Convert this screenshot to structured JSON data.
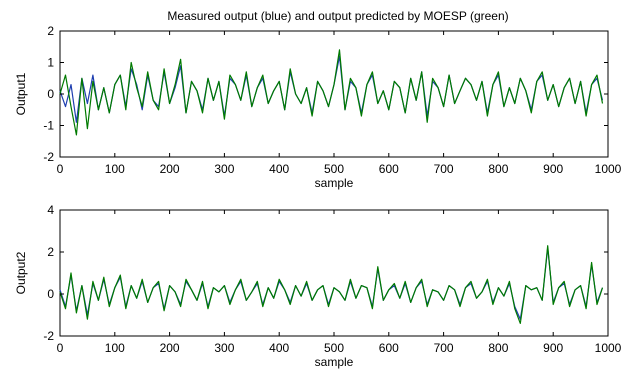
{
  "chart_data": {
    "title": "Measured output (blue) and output predicted by MOESP (green)",
    "colors": {
      "measured": "#1f3fb0",
      "predicted": "#007a00",
      "axes": "#000000"
    },
    "plots": [
      {
        "type": "line",
        "ylabel": "Output1",
        "xlabel": "sample",
        "xlim": [
          0,
          1000
        ],
        "ylim": [
          -2,
          2
        ],
        "xticks": [
          0,
          100,
          200,
          300,
          400,
          500,
          600,
          700,
          800,
          900,
          1000
        ],
        "yticks": [
          -2,
          -1,
          0,
          1,
          2
        ],
        "series": [
          {
            "key": "measured",
            "x_step": 10,
            "values": [
              0.1,
              -0.4,
              0.3,
              -0.9,
              0.5,
              -0.3,
              0.6,
              -0.5,
              0.2,
              -0.6,
              0.3,
              0.6,
              -0.4,
              0.8,
              0.3,
              -0.5,
              0.6,
              -0.2,
              -0.4,
              0.7,
              -0.3,
              0.2,
              0.9,
              -0.6,
              0.4,
              0.1,
              -0.5,
              0.5,
              -0.2,
              0.4,
              -0.7,
              0.5,
              0.3,
              -0.2,
              0.6,
              -0.4,
              0.2,
              0.5,
              -0.3,
              0.1,
              0.4,
              -0.5,
              0.7,
              0.0,
              -0.3,
              0.2,
              -0.6,
              0.4,
              0.1,
              -0.4,
              0.3,
              1.2,
              -0.5,
              0.4,
              0.2,
              -0.6,
              0.3,
              0.6,
              -0.3,
              0.1,
              -0.5,
              0.4,
              0.2,
              -0.6,
              0.5,
              -0.2,
              0.7,
              -0.7,
              0.4,
              0.2,
              -0.4,
              0.6,
              -0.3,
              0.1,
              0.5,
              0.3,
              -0.2,
              0.4,
              -0.6,
              0.3,
              0.6,
              -0.4,
              0.2,
              -0.3,
              0.5,
              0.1,
              -0.5,
              0.4,
              0.6,
              -0.2,
              0.3,
              -0.4,
              0.2,
              0.5,
              -0.3,
              0.4,
              -0.6,
              0.3,
              0.5,
              -0.2
            ]
          },
          {
            "key": "predicted",
            "x_step": 10,
            "values": [
              0.0,
              0.6,
              -0.4,
              -1.3,
              0.5,
              -1.1,
              0.4,
              -0.5,
              0.2,
              -0.6,
              0.3,
              0.6,
              -0.5,
              1.0,
              0.2,
              -0.4,
              0.7,
              -0.2,
              -0.5,
              0.8,
              -0.3,
              0.3,
              1.1,
              -0.6,
              0.4,
              0.1,
              -0.6,
              0.5,
              -0.2,
              0.4,
              -0.8,
              0.6,
              0.3,
              -0.2,
              0.7,
              -0.4,
              0.2,
              0.6,
              -0.3,
              0.1,
              0.4,
              -0.5,
              0.8,
              0.0,
              -0.3,
              0.2,
              -0.7,
              0.4,
              0.1,
              -0.4,
              0.3,
              1.4,
              -0.5,
              0.5,
              0.2,
              -0.7,
              0.3,
              0.7,
              -0.3,
              0.1,
              -0.5,
              0.4,
              0.2,
              -0.6,
              0.5,
              -0.2,
              0.7,
              -0.9,
              0.5,
              0.2,
              -0.4,
              0.6,
              -0.3,
              0.1,
              0.5,
              0.3,
              -0.2,
              0.4,
              -0.7,
              0.3,
              0.7,
              -0.4,
              0.2,
              -0.3,
              0.5,
              0.1,
              -0.6,
              0.4,
              0.7,
              -0.2,
              0.3,
              -0.4,
              0.2,
              0.5,
              -0.3,
              0.4,
              -0.7,
              0.3,
              0.6,
              -0.3
            ]
          }
        ]
      },
      {
        "type": "line",
        "ylabel": "Output2",
        "xlabel": "sample",
        "xlim": [
          0,
          1000
        ],
        "ylim": [
          -2,
          4
        ],
        "xticks": [
          0,
          100,
          200,
          300,
          400,
          500,
          600,
          700,
          800,
          900,
          1000
        ],
        "yticks": [
          -2,
          0,
          2,
          4
        ],
        "series": [
          {
            "key": "measured",
            "x_step": 10,
            "values": [
              0.2,
              -0.6,
              0.9,
              -0.8,
              0.4,
              -1.0,
              0.5,
              -0.3,
              0.7,
              -0.5,
              0.3,
              0.8,
              -0.6,
              0.4,
              -0.2,
              0.6,
              -0.4,
              0.3,
              0.5,
              -0.7,
              0.4,
              0.1,
              -0.5,
              0.6,
              0.2,
              -0.3,
              0.5,
              -0.6,
              0.3,
              0.1,
              0.4,
              -0.4,
              0.2,
              0.6,
              -0.3,
              0.1,
              0.5,
              -0.5,
              0.3,
              -0.2,
              0.6,
              0.2,
              -0.4,
              0.4,
              -0.1,
              0.5,
              -0.3,
              0.2,
              0.4,
              -0.5,
              0.3,
              0.1,
              -0.3,
              0.6,
              -0.2,
              0.4,
              0.3,
              -0.6,
              1.2,
              -0.3,
              0.2,
              0.4,
              -0.2,
              0.5,
              -0.4,
              0.3,
              0.6,
              -0.5,
              0.2,
              0.1,
              -0.3,
              0.4,
              0.2,
              -0.5,
              0.3,
              0.5,
              -0.2,
              0.1,
              0.6,
              -0.4,
              0.3,
              -0.1,
              0.5,
              -0.6,
              -1.2,
              0.4,
              0.2,
              0.3,
              -0.3,
              2.2,
              -0.4,
              0.3,
              0.5,
              -0.5,
              0.2,
              0.4,
              -0.6,
              1.4,
              -0.4,
              0.3
            ]
          },
          {
            "key": "predicted",
            "x_step": 10,
            "values": [
              0.1,
              -0.7,
              1.0,
              -0.9,
              0.4,
              -1.2,
              0.6,
              -0.3,
              0.8,
              -0.6,
              0.3,
              0.9,
              -0.7,
              0.4,
              -0.2,
              0.7,
              -0.4,
              0.3,
              0.6,
              -0.8,
              0.4,
              0.1,
              -0.6,
              0.7,
              0.2,
              -0.3,
              0.6,
              -0.7,
              0.3,
              0.1,
              0.4,
              -0.5,
              0.2,
              0.7,
              -0.3,
              0.1,
              0.6,
              -0.6,
              0.3,
              -0.2,
              0.7,
              0.2,
              -0.5,
              0.4,
              -0.1,
              0.6,
              -0.3,
              0.2,
              0.4,
              -0.6,
              0.3,
              0.1,
              -0.3,
              0.7,
              -0.2,
              0.4,
              0.3,
              -0.7,
              1.3,
              -0.3,
              0.2,
              0.5,
              -0.2,
              0.6,
              -0.4,
              0.3,
              0.7,
              -0.6,
              0.2,
              0.1,
              -0.3,
              0.4,
              0.2,
              -0.6,
              0.3,
              0.6,
              -0.2,
              0.1,
              0.7,
              -0.5,
              0.3,
              -0.1,
              0.6,
              -0.7,
              -1.4,
              0.4,
              0.2,
              0.3,
              -0.3,
              2.3,
              -0.5,
              0.3,
              0.6,
              -0.6,
              0.2,
              0.4,
              -0.7,
              1.5,
              -0.5,
              0.3
            ]
          }
        ]
      }
    ]
  }
}
